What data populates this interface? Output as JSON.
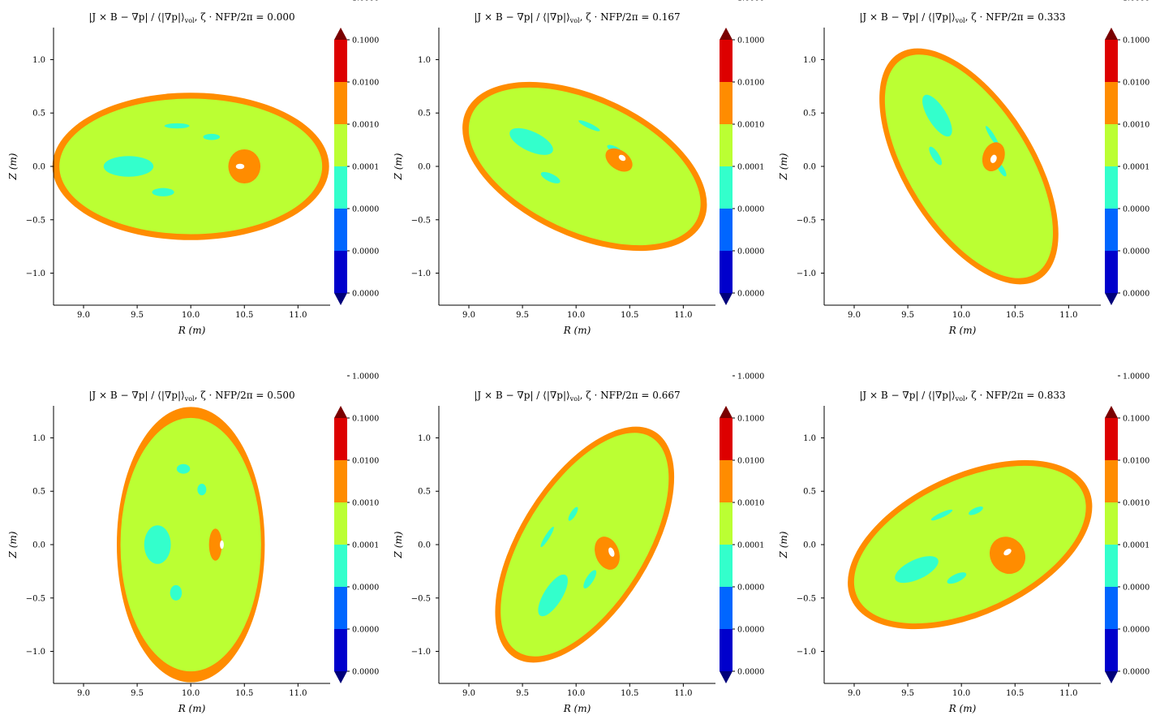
{
  "figure": {
    "title_prefix": "|J × B − ∇p| / ⟨|∇p|⟩",
    "title_subscript": "vol",
    "title_mid": ", ζ · NFP/2π = ",
    "x_label": "R (m)",
    "y_label": "Z (m)"
  },
  "colorbar": {
    "levels": [
      "0.0000",
      "0.0000",
      "0.0000",
      "0.0001",
      "0.0010",
      "0.0100",
      "0.1000",
      "1.0000"
    ],
    "band_colors": [
      "#0000cc",
      "#0066ff",
      "#33ffcc",
      "#bbff33",
      "#ff8c00",
      "#dd0000"
    ],
    "extend_low_color": "#00007a",
    "extend_high_color": "#7a0000"
  },
  "chart_data": [
    {
      "type": "heatmap",
      "title_value": "0.000",
      "x_ticks": [
        "9.0",
        "9.5",
        "10.0",
        "10.5",
        "11.0"
      ],
      "y_ticks": [
        "1.0",
        "0.5",
        "0.0",
        "−0.5",
        "−1.0"
      ],
      "xlim": [
        8.72,
        11.3
      ],
      "ylim": [
        -1.3,
        1.3
      ],
      "boundary": {
        "center_r": 10.0,
        "center_z": 0.0,
        "semi_r": 1.29,
        "semi_z": 0.69,
        "tilt_deg": 0
      },
      "hotspot": {
        "r": 10.5,
        "z": 0.0,
        "wr": 0.15,
        "wz": 0.16,
        "tilt_deg": 0
      },
      "hole": {
        "r": 10.46,
        "z": 0.0,
        "wr": 0.04,
        "wz": 0.025,
        "tilt_deg": 0
      }
    },
    {
      "type": "heatmap",
      "title_value": "0.167",
      "x_ticks": [
        "9.0",
        "9.5",
        "10.0",
        "10.5",
        "11.0"
      ],
      "y_ticks": [
        "1.0",
        "0.5",
        "0.0",
        "−0.5",
        "−1.0"
      ],
      "xlim": [
        8.72,
        11.3
      ],
      "ylim": [
        -1.3,
        1.3
      ],
      "boundary": {
        "center_r": 10.08,
        "center_z": 0.0,
        "semi_r": 1.22,
        "semi_z": 0.66,
        "tilt_deg": -25
      },
      "hotspot": {
        "r": 10.4,
        "z": 0.06,
        "wr": 0.14,
        "wz": 0.09,
        "tilt_deg": -35
      },
      "hole": {
        "r": 10.43,
        "z": 0.08,
        "wr": 0.035,
        "wz": 0.025,
        "tilt_deg": -35
      }
    },
    {
      "type": "heatmap",
      "title_value": "0.333",
      "x_ticks": [
        "9.0",
        "9.5",
        "10.0",
        "10.5",
        "11.0"
      ],
      "y_ticks": [
        "1.0",
        "0.5",
        "0.0",
        "−0.5",
        "−1.0"
      ],
      "xlim": [
        8.72,
        11.3
      ],
      "ylim": [
        -1.3,
        1.3
      ],
      "boundary": {
        "center_r": 10.07,
        "center_z": 0.0,
        "semi_r": 1.24,
        "semi_z": 0.61,
        "tilt_deg": -58
      },
      "hotspot": {
        "r": 10.3,
        "z": 0.09,
        "wr": 0.1,
        "wz": 0.14,
        "tilt_deg": -20
      },
      "hole": {
        "r": 10.3,
        "z": 0.07,
        "wr": 0.028,
        "wz": 0.04,
        "tilt_deg": -20
      }
    },
    {
      "type": "heatmap",
      "title_value": "0.500",
      "x_ticks": [
        "9.0",
        "9.5",
        "10.0",
        "10.5",
        "11.0"
      ],
      "y_ticks": [
        "1.0",
        "0.5",
        "0.0",
        "−0.5",
        "−1.0"
      ],
      "xlim": [
        8.72,
        11.3
      ],
      "ylim": [
        -1.3,
        1.3
      ],
      "boundary": {
        "center_r": 10.0,
        "center_z": 0.0,
        "semi_r": 0.69,
        "semi_z": 1.29,
        "tilt_deg": 0
      },
      "hotspot": {
        "r": 10.23,
        "z": 0.0,
        "wr": 0.06,
        "wz": 0.15,
        "tilt_deg": 0
      },
      "hole": {
        "r": 10.29,
        "z": 0.0,
        "wr": 0.018,
        "wz": 0.04,
        "tilt_deg": 0
      }
    },
    {
      "type": "heatmap",
      "title_value": "0.667",
      "x_ticks": [
        "9.0",
        "9.5",
        "10.0",
        "10.5",
        "11.0"
      ],
      "y_ticks": [
        "1.0",
        "0.5",
        "0.0",
        "−0.5",
        "−1.0"
      ],
      "xlim": [
        8.72,
        11.3
      ],
      "ylim": [
        -1.3,
        1.3
      ],
      "boundary": {
        "center_r": 10.08,
        "center_z": 0.0,
        "semi_r": 1.24,
        "semi_z": 0.61,
        "tilt_deg": 58
      },
      "hotspot": {
        "r": 10.29,
        "z": -0.08,
        "wr": 0.11,
        "wz": 0.16,
        "tilt_deg": 20
      },
      "hole": {
        "r": 10.33,
        "z": -0.07,
        "wr": 0.025,
        "wz": 0.045,
        "tilt_deg": 20
      }
    },
    {
      "type": "heatmap",
      "title_value": "0.833",
      "x_ticks": [
        "9.0",
        "9.5",
        "10.0",
        "10.5",
        "11.0"
      ],
      "y_ticks": [
        "1.0",
        "0.5",
        "0.0",
        "−0.5",
        "−1.0"
      ],
      "xlim": [
        8.72,
        11.3
      ],
      "ylim": [
        -1.3,
        1.3
      ],
      "boundary": {
        "center_r": 10.08,
        "center_z": 0.0,
        "semi_r": 1.22,
        "semi_z": 0.66,
        "tilt_deg": 25
      },
      "hotspot": {
        "r": 10.43,
        "z": -0.1,
        "wr": 0.16,
        "wz": 0.18,
        "tilt_deg": 35
      },
      "hole": {
        "r": 10.43,
        "z": -0.07,
        "wr": 0.04,
        "wz": 0.025,
        "tilt_deg": 35
      }
    }
  ]
}
